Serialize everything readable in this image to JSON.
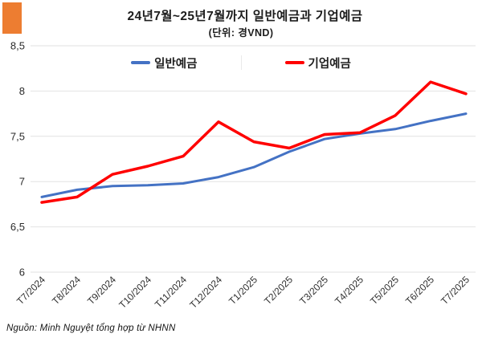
{
  "accent_block_color": "#ED7D31",
  "header": {
    "title": "24년7월~25년7월까지 일반예금과 기업예금",
    "subtitle": "(단위: 경VND)"
  },
  "legend": [
    {
      "label": "일반예금",
      "color": "#4472C4"
    },
    {
      "label": "기업예금",
      "color": "#FF0000"
    }
  ],
  "chart_data": {
    "type": "line",
    "title": "24년7월~25년7월까지 일반예금과 기업예금",
    "subtitle": "(단위: 경VND)",
    "categories": [
      "T7/2024",
      "T8/2024",
      "T9/2024",
      "T10/2024",
      "T11/2024",
      "T12/2024",
      "T1/2025",
      "T2/2025",
      "T3/2025",
      "T4/2025",
      "T5/2025",
      "T6/2025",
      "T7/2025"
    ],
    "series": [
      {
        "name": "일반예금",
        "color": "#4472C4",
        "values": [
          6.83,
          6.91,
          6.95,
          6.96,
          6.98,
          7.05,
          7.16,
          7.33,
          7.47,
          7.53,
          7.58,
          7.67,
          7.75
        ]
      },
      {
        "name": "기업예금",
        "color": "#FF0000",
        "values": [
          6.77,
          6.83,
          7.08,
          7.17,
          7.28,
          7.66,
          7.44,
          7.37,
          7.52,
          7.54,
          7.73,
          8.1,
          7.97
        ]
      }
    ],
    "ylim": [
      6,
      8.5
    ],
    "yticks": {
      "values": [
        8.5,
        8,
        7.5,
        7,
        6.5,
        6
      ],
      "labels": [
        "8,5",
        "8",
        "7,5",
        "7",
        "6,5",
        "6"
      ]
    },
    "grid": "horizontal",
    "legend_position": "top",
    "xlabel": "",
    "ylabel": ""
  },
  "source_note": "Nguồn: Minh Nguyệt tổng hợp từ NHNN"
}
